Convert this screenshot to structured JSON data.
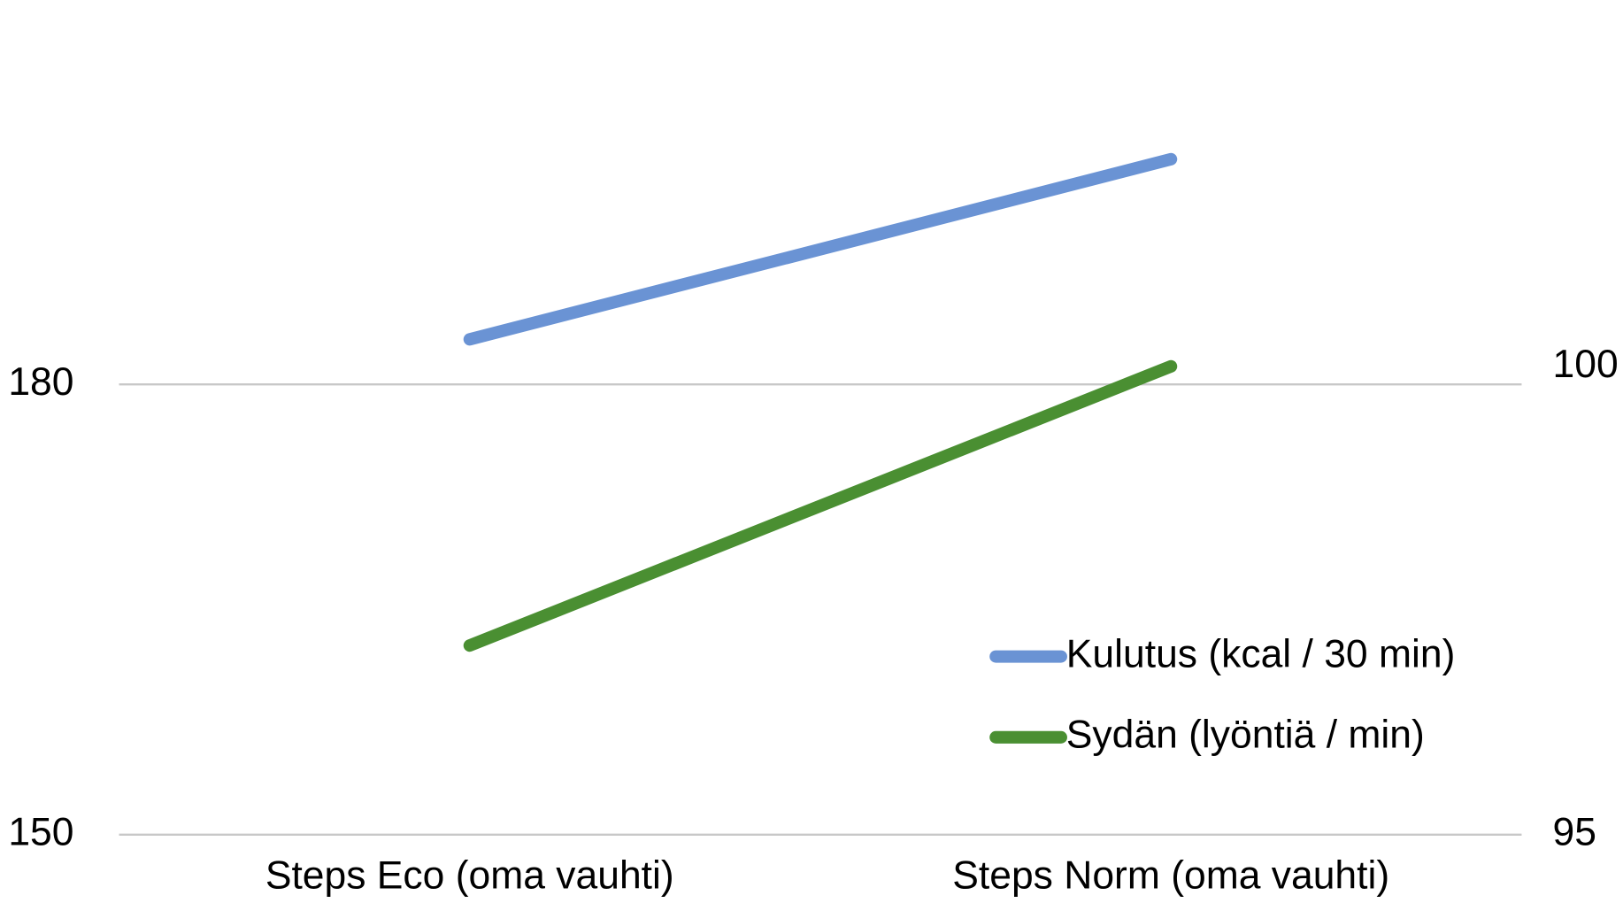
{
  "chart_data": {
    "type": "line",
    "categories": [
      "Steps Eco (oma vauhti)",
      "Steps Norm (oma vauhti)"
    ],
    "series": [
      {
        "name": "Kulutus (kcal / 30 min)",
        "color": "#6a93d4",
        "values": [
          183,
          195
        ]
      },
      {
        "name": "Sydän (lyöntiä / min)",
        "color": "#4a8f32",
        "values": [
          97.1,
          100.2
        ],
        "axis": "y2"
      }
    ],
    "ylim": [
      150,
      203.4
    ],
    "yticks": [
      150,
      180
    ],
    "y2lim": [
      95,
      103.9
    ],
    "y2ticks": [
      95,
      100
    ],
    "grid": true,
    "legend": "lower right"
  }
}
